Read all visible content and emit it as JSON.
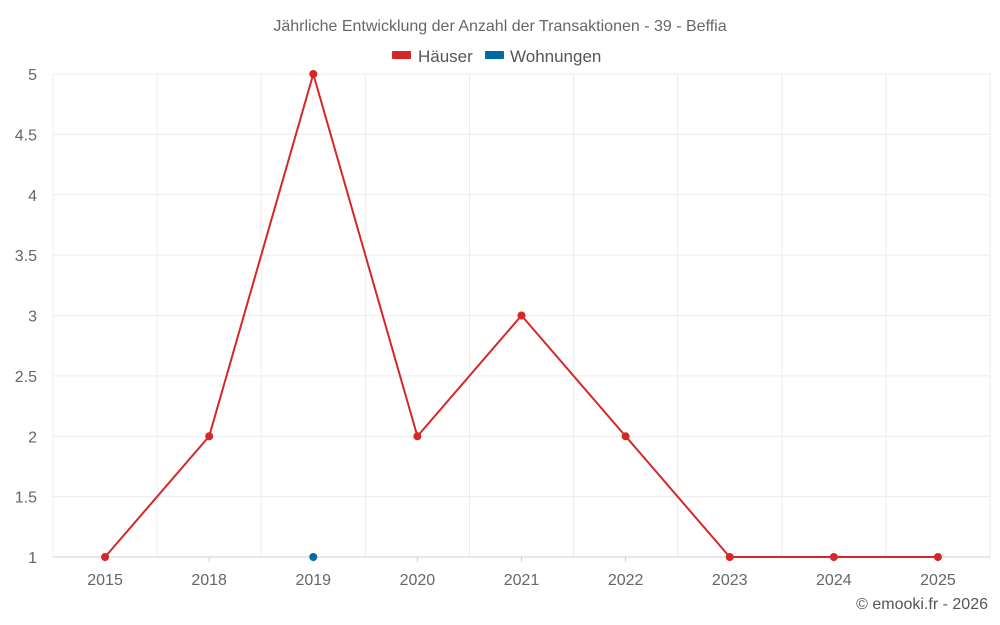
{
  "chart_data": {
    "type": "line",
    "title": "Jährliche Entwicklung der Anzahl der Transaktionen - 39 - Beffia",
    "categories": [
      "2015",
      "2018",
      "2019",
      "2020",
      "2021",
      "2022",
      "2023",
      "2024",
      "2025"
    ],
    "ylim": [
      1,
      5
    ],
    "yticks": [
      "1",
      "1.5",
      "2",
      "2.5",
      "3",
      "3.5",
      "4",
      "4.5",
      "5"
    ],
    "legend_position": "top-center",
    "series": [
      {
        "name": "Häuser",
        "color": "#d62728",
        "values": [
          1,
          2,
          5,
          2,
          3,
          2,
          1,
          1,
          1
        ]
      },
      {
        "name": "Wohnungen",
        "color": "#006aa7",
        "values": [
          null,
          null,
          1,
          null,
          null,
          null,
          null,
          null,
          null
        ]
      }
    ]
  },
  "credit": "© emooki.fr - 2026"
}
